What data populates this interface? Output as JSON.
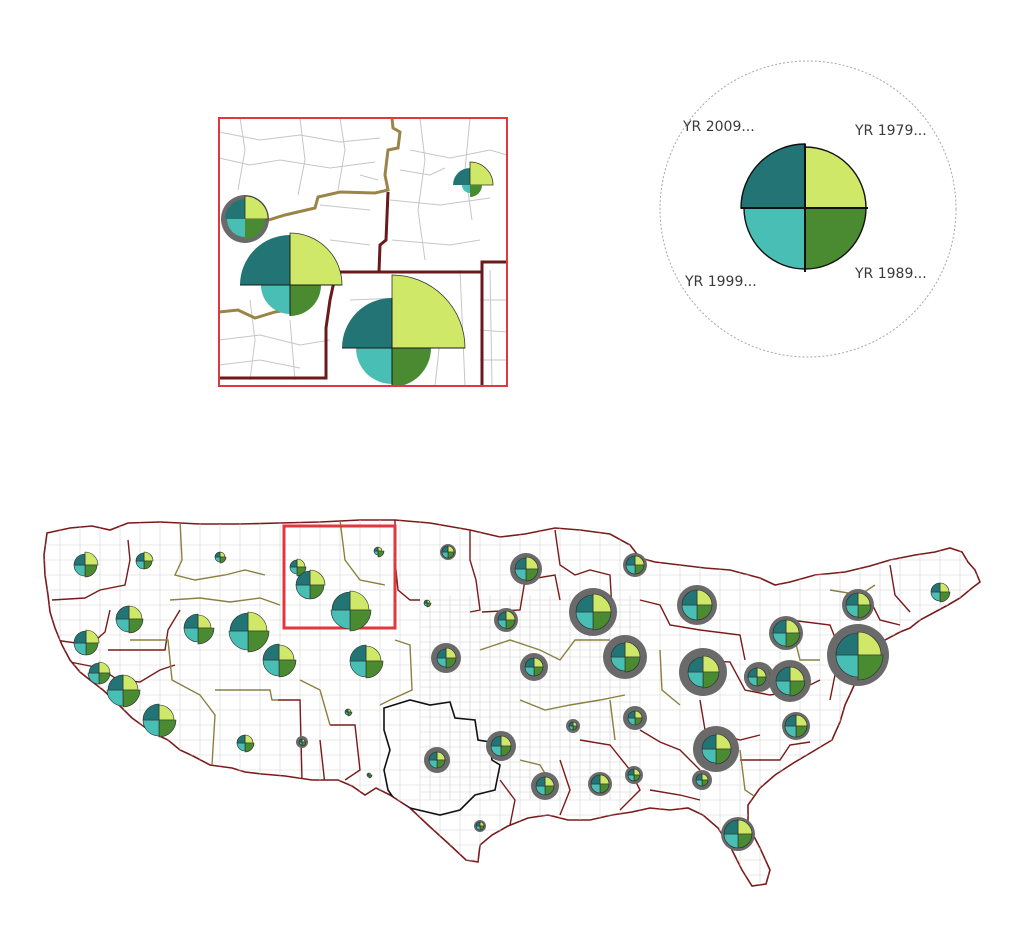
{
  "colors": {
    "q1979": "#cfe868",
    "q1989": "#4a8a30",
    "q1999": "#48beb4",
    "q2009": "#237474",
    "halo": "#6a6a6a",
    "highlight": "#e0383e",
    "region_dark": "#6a1010",
    "region_olive": "#8a8040",
    "region_black": "#111111",
    "county_line": "#c8c8c8"
  },
  "legend": {
    "labels": {
      "q2009": "YR 2009...",
      "q1979": "YR 1979...",
      "q1999": "YR 1999...",
      "q1989": "YR 1989..."
    }
  },
  "glyphs": [
    {
      "id": "seattle",
      "r": [
        13,
        12,
        11,
        11
      ],
      "halo": 0
    },
    {
      "id": "wa-east",
      "r": [
        9,
        8,
        8,
        8
      ],
      "halo": 0
    },
    {
      "id": "or-north",
      "r": [
        13,
        14,
        13,
        13
      ],
      "halo": 0
    },
    {
      "id": "or-mid",
      "r": [
        13,
        12,
        12,
        12
      ],
      "halo": 0
    },
    {
      "id": "or-south",
      "r": [
        11,
        11,
        11,
        10
      ],
      "halo": 0
    },
    {
      "id": "id-north",
      "r": [
        5,
        6,
        5,
        5
      ],
      "halo": 0
    },
    {
      "id": "id-mid",
      "r": [
        13,
        16,
        14,
        14
      ],
      "halo": 0
    },
    {
      "id": "id-east",
      "r": [
        19,
        21,
        19,
        18
      ],
      "halo": 0
    },
    {
      "id": "id-south",
      "r": [
        15,
        17,
        16,
        16
      ],
      "halo": 0
    },
    {
      "id": "ca-north",
      "r": [
        15,
        17,
        16,
        15
      ],
      "halo": 0
    },
    {
      "id": "ca-south",
      "r": [
        15,
        17,
        16,
        16
      ],
      "halo": 0
    },
    {
      "id": "az",
      "r": [
        8,
        9,
        8,
        8
      ],
      "halo": 0
    },
    {
      "id": "mt-west",
      "r": [
        8,
        9,
        7,
        7
      ],
      "halo": 0
    },
    {
      "id": "mt-mid",
      "r": [
        15,
        14,
        14,
        14
      ],
      "halo": 0
    },
    {
      "id": "mt-east",
      "r": [
        19,
        21,
        19,
        18
      ],
      "halo": 0
    },
    {
      "id": "nd",
      "r": [
        4,
        6,
        4,
        4
      ],
      "halo": 0
    },
    {
      "id": "co",
      "r": [
        15,
        17,
        16,
        16
      ],
      "halo": 0
    },
    {
      "id": "sd-dot",
      "r": [
        3,
        4,
        3,
        3
      ],
      "halo": 0
    },
    {
      "id": "ut-dot",
      "r": [
        3,
        4,
        3,
        3
      ],
      "halo": 0
    },
    {
      "id": "nm-dot",
      "r": [
        2,
        3,
        2,
        2
      ],
      "halo": 0
    },
    {
      "id": "mn-nw",
      "r": [
        6,
        6,
        6,
        6
      ],
      "halo": 2
    },
    {
      "id": "ks-dot",
      "r": [
        3,
        4,
        3,
        3
      ],
      "halo": 2
    },
    {
      "id": "mn",
      "r": [
        12,
        12,
        11,
        11
      ],
      "halo": 4
    },
    {
      "id": "wi",
      "r": [
        9,
        9,
        8,
        8
      ],
      "halo": 3
    },
    {
      "id": "chicago",
      "r": [
        18,
        18,
        17,
        17
      ],
      "halo": 6
    },
    {
      "id": "mi-up",
      "r": [
        9,
        9,
        9,
        9
      ],
      "halo": 3
    },
    {
      "id": "mi-south",
      "r": [
        15,
        15,
        15,
        15
      ],
      "halo": 5
    },
    {
      "id": "ia",
      "r": [
        10,
        10,
        9,
        9
      ],
      "halo": 5
    },
    {
      "id": "mo",
      "r": [
        9,
        9,
        9,
        9
      ],
      "halo": 5
    },
    {
      "id": "in",
      "r": [
        15,
        15,
        14,
        14
      ],
      "halo": 7
    },
    {
      "id": "oh",
      "r": [
        16,
        16,
        15,
        15
      ],
      "halo": 8
    },
    {
      "id": "pa-west",
      "r": [
        11,
        11,
        11,
        11
      ],
      "halo": 4
    },
    {
      "id": "wv",
      "r": [
        9,
        9,
        9,
        9
      ],
      "halo": 4
    },
    {
      "id": "va-w",
      "r": [
        14,
        15,
        14,
        14
      ],
      "halo": 6
    },
    {
      "id": "ny-up",
      "r": [
        13,
        14,
        13,
        13
      ],
      "halo": 3
    },
    {
      "id": "ne",
      "r": [
        12,
        13,
        12,
        12
      ],
      "halo": 3
    },
    {
      "id": "nyc",
      "r": [
        23,
        25,
        22,
        22
      ],
      "halo": 6
    },
    {
      "id": "tn",
      "r": [
        15,
        15,
        14,
        14
      ],
      "halo": 8
    },
    {
      "id": "tn-dot",
      "r": [
        6,
        6,
        6,
        6
      ],
      "halo": 4
    },
    {
      "id": "nc",
      "r": [
        11,
        11,
        11,
        11
      ],
      "halo": 3
    },
    {
      "id": "ga-south",
      "r": [
        7,
        7,
        7,
        7
      ],
      "halo": 5
    },
    {
      "id": "ok",
      "r": [
        8,
        8,
        8,
        8
      ],
      "halo": 5
    },
    {
      "id": "ar",
      "r": [
        10,
        10,
        10,
        10
      ],
      "halo": 5
    },
    {
      "id": "ar-dot",
      "r": [
        4,
        4,
        4,
        4
      ],
      "halo": 3
    },
    {
      "id": "tx-n",
      "r": [
        9,
        9,
        9,
        9
      ],
      "halo": 5
    },
    {
      "id": "ms",
      "r": [
        9,
        9,
        9,
        9
      ],
      "halo": 3
    },
    {
      "id": "al",
      "r": [
        6,
        6,
        6,
        6
      ],
      "halo": 3
    },
    {
      "id": "la-dot",
      "r": [
        4,
        4,
        4,
        4
      ],
      "halo": 2
    },
    {
      "id": "tx-s",
      "r": [
        4,
        4,
        4,
        4
      ],
      "halo": 2
    },
    {
      "id": "fl",
      "r": [
        14,
        14,
        14,
        14
      ],
      "halo": 3
    }
  ]
}
